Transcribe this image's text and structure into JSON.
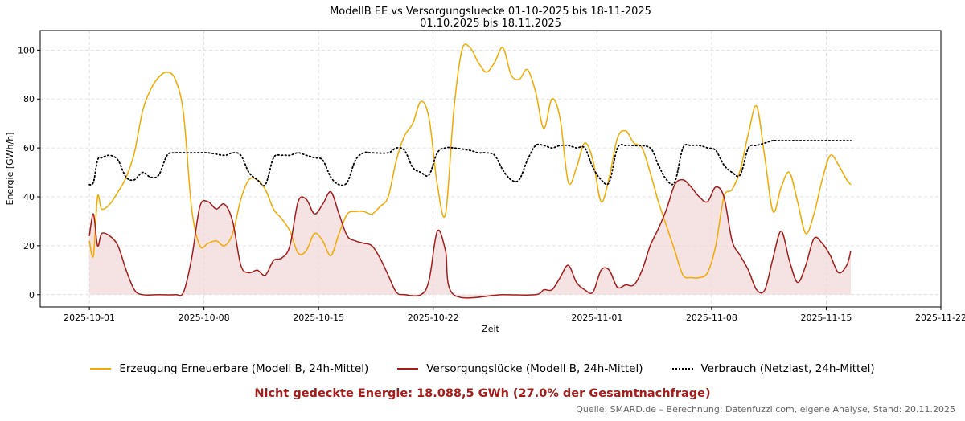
{
  "chart_data": {
    "type": "line",
    "title": "ModellB EE vs Versorgungsluecke 01-10-2025 bis 18-11-2025",
    "subtitle": "01.10.2025 bis 18.11.2025",
    "xlabel": "Zeit",
    "ylabel": "Energie [GWh/h]",
    "xlim": [
      "2025-09-28",
      "2025-11-22"
    ],
    "ylim": [
      -5,
      108
    ],
    "grid": true,
    "legend_position": "bottom-center",
    "x_ticks": [
      "2025-10-01",
      "2025-10-08",
      "2025-10-15",
      "2025-10-22",
      "2025-11-01",
      "2025-11-08",
      "2025-11-15",
      "2025-11-22"
    ],
    "y_ticks": [
      0,
      20,
      40,
      60,
      80,
      100
    ],
    "series": [
      {
        "name": "Erzeugung Erneuerbare (Modell B, 24h-Mittel)",
        "color": "#f2a900",
        "style": "solid",
        "points": [
          [
            "2025-10-01T00",
            22
          ],
          [
            "2025-10-01T06",
            16
          ],
          [
            "2025-10-01T12",
            40
          ],
          [
            "2025-10-01T18",
            35
          ],
          [
            "2025-10-02T06",
            37
          ],
          [
            "2025-10-02T18",
            42
          ],
          [
            "2025-10-03T06",
            48
          ],
          [
            "2025-10-03T18",
            58
          ],
          [
            "2025-10-04T06",
            75
          ],
          [
            "2025-10-04T18",
            84
          ],
          [
            "2025-10-05T06",
            89
          ],
          [
            "2025-10-05T18",
            91
          ],
          [
            "2025-10-06T06",
            88
          ],
          [
            "2025-10-06T18",
            74
          ],
          [
            "2025-10-07T06",
            35
          ],
          [
            "2025-10-07T18",
            20
          ],
          [
            "2025-10-08T06",
            21
          ],
          [
            "2025-10-08T18",
            22
          ],
          [
            "2025-10-09T06",
            20
          ],
          [
            "2025-10-09T18",
            25
          ],
          [
            "2025-10-10T06",
            39
          ],
          [
            "2025-10-10T18",
            47
          ],
          [
            "2025-10-11T06",
            47
          ],
          [
            "2025-10-11T18",
            43
          ],
          [
            "2025-10-12T06",
            35
          ],
          [
            "2025-10-12T18",
            31
          ],
          [
            "2025-10-13T06",
            26
          ],
          [
            "2025-10-13T18",
            17
          ],
          [
            "2025-10-14T06",
            18
          ],
          [
            "2025-10-14T18",
            25
          ],
          [
            "2025-10-15T06",
            22
          ],
          [
            "2025-10-15T18",
            16
          ],
          [
            "2025-10-16T06",
            25
          ],
          [
            "2025-10-16T18",
            33
          ],
          [
            "2025-10-17T06",
            34
          ],
          [
            "2025-10-17T18",
            34
          ],
          [
            "2025-10-18T06",
            33
          ],
          [
            "2025-10-18T18",
            36
          ],
          [
            "2025-10-19T06",
            40
          ],
          [
            "2025-10-19T18",
            55
          ],
          [
            "2025-10-20T06",
            65
          ],
          [
            "2025-10-20T18",
            70
          ],
          [
            "2025-10-21T06",
            79
          ],
          [
            "2025-10-21T18",
            72
          ],
          [
            "2025-10-22T06",
            45
          ],
          [
            "2025-10-22T18",
            33
          ],
          [
            "2025-10-23T06",
            75
          ],
          [
            "2025-10-23T18",
            100
          ],
          [
            "2025-10-24T06",
            101
          ],
          [
            "2025-10-24T18",
            95
          ],
          [
            "2025-10-25T06",
            91
          ],
          [
            "2025-10-25T18",
            95
          ],
          [
            "2025-10-26T06",
            101
          ],
          [
            "2025-10-26T18",
            90
          ],
          [
            "2025-10-27T06",
            88
          ],
          [
            "2025-10-27T18",
            92
          ],
          [
            "2025-10-28T06",
            83
          ],
          [
            "2025-10-28T18",
            68
          ],
          [
            "2025-10-29T06",
            80
          ],
          [
            "2025-10-29T18",
            72
          ],
          [
            "2025-10-30T06",
            46
          ],
          [
            "2025-10-30T18",
            52
          ],
          [
            "2025-10-31T06",
            62
          ],
          [
            "2025-10-31T18",
            55
          ],
          [
            "2025-11-01T06",
            38
          ],
          [
            "2025-11-01T18",
            48
          ],
          [
            "2025-11-02T06",
            64
          ],
          [
            "2025-11-02T18",
            67
          ],
          [
            "2025-11-03T06",
            62
          ],
          [
            "2025-11-03T18",
            60
          ],
          [
            "2025-11-04T06",
            50
          ],
          [
            "2025-11-04T18",
            38
          ],
          [
            "2025-11-05T06",
            28
          ],
          [
            "2025-11-05T18",
            18
          ],
          [
            "2025-11-06T06",
            8
          ],
          [
            "2025-11-06T18",
            7
          ],
          [
            "2025-11-07T06",
            7
          ],
          [
            "2025-11-07T18",
            9
          ],
          [
            "2025-11-08T06",
            20
          ],
          [
            "2025-11-08T18",
            40
          ],
          [
            "2025-11-09T06",
            43
          ],
          [
            "2025-11-09T18",
            51
          ],
          [
            "2025-11-10T06",
            66
          ],
          [
            "2025-11-10T18",
            77
          ],
          [
            "2025-11-11T06",
            56
          ],
          [
            "2025-11-11T18",
            34
          ],
          [
            "2025-11-12T06",
            44
          ],
          [
            "2025-11-12T18",
            50
          ],
          [
            "2025-11-13T06",
            38
          ],
          [
            "2025-11-13T18",
            25
          ],
          [
            "2025-11-14T06",
            33
          ],
          [
            "2025-11-14T18",
            47
          ],
          [
            "2025-11-15T06",
            57
          ],
          [
            "2025-11-15T18",
            53
          ],
          [
            "2025-11-16T06",
            47
          ],
          [
            "2025-11-16T12",
            45
          ]
        ]
      },
      {
        "name": "Versorgungslücke (Modell B, 24h-Mittel)",
        "color": "#a51c1c",
        "style": "solid",
        "filled": true,
        "points": [
          [
            "2025-10-01T00",
            24
          ],
          [
            "2025-10-01T06",
            33
          ],
          [
            "2025-10-01T12",
            20
          ],
          [
            "2025-10-01T18",
            25
          ],
          [
            "2025-10-02T06",
            24
          ],
          [
            "2025-10-02T18",
            20
          ],
          [
            "2025-10-03T06",
            10
          ],
          [
            "2025-10-03T18",
            2
          ],
          [
            "2025-10-04T06",
            0
          ],
          [
            "2025-10-05T06",
            0
          ],
          [
            "2025-10-06T06",
            0
          ],
          [
            "2025-10-06T18",
            1
          ],
          [
            "2025-10-07T06",
            15
          ],
          [
            "2025-10-07T18",
            36
          ],
          [
            "2025-10-08T06",
            38
          ],
          [
            "2025-10-08T18",
            35
          ],
          [
            "2025-10-09T06",
            37
          ],
          [
            "2025-10-09T18",
            30
          ],
          [
            "2025-10-10T06",
            12
          ],
          [
            "2025-10-10T18",
            9
          ],
          [
            "2025-10-11T06",
            10
          ],
          [
            "2025-10-11T18",
            8
          ],
          [
            "2025-10-12T06",
            14
          ],
          [
            "2025-10-12T18",
            15
          ],
          [
            "2025-10-13T06",
            20
          ],
          [
            "2025-10-13T18",
            38
          ],
          [
            "2025-10-14T06",
            39
          ],
          [
            "2025-10-14T18",
            33
          ],
          [
            "2025-10-15T06",
            37
          ],
          [
            "2025-10-15T18",
            42
          ],
          [
            "2025-10-16T06",
            33
          ],
          [
            "2025-10-16T18",
            24
          ],
          [
            "2025-10-17T06",
            22
          ],
          [
            "2025-10-17T18",
            21
          ],
          [
            "2025-10-18T06",
            20
          ],
          [
            "2025-10-18T18",
            15
          ],
          [
            "2025-10-19T06",
            8
          ],
          [
            "2025-10-19T18",
            1
          ],
          [
            "2025-10-20T06",
            0
          ],
          [
            "2025-10-21T06",
            0
          ],
          [
            "2025-10-21T18",
            6
          ],
          [
            "2025-10-22T06",
            26
          ],
          [
            "2025-10-22T18",
            18
          ],
          [
            "2025-10-23T06",
            0
          ],
          [
            "2025-10-26T06",
            0
          ],
          [
            "2025-10-28T06",
            0
          ],
          [
            "2025-10-28T18",
            2
          ],
          [
            "2025-10-29T06",
            2
          ],
          [
            "2025-10-29T18",
            7
          ],
          [
            "2025-10-30T06",
            12
          ],
          [
            "2025-10-30T18",
            5
          ],
          [
            "2025-10-31T06",
            2
          ],
          [
            "2025-10-31T18",
            1
          ],
          [
            "2025-11-01T06",
            10
          ],
          [
            "2025-11-01T18",
            10
          ],
          [
            "2025-11-02T06",
            3
          ],
          [
            "2025-11-02T18",
            4
          ],
          [
            "2025-11-03T06",
            4
          ],
          [
            "2025-11-03T18",
            10
          ],
          [
            "2025-11-04T06",
            20
          ],
          [
            "2025-11-04T18",
            27
          ],
          [
            "2025-11-05T06",
            35
          ],
          [
            "2025-11-05T18",
            45
          ],
          [
            "2025-11-06T06",
            47
          ],
          [
            "2025-11-06T18",
            44
          ],
          [
            "2025-11-07T06",
            40
          ],
          [
            "2025-11-07T18",
            38
          ],
          [
            "2025-11-08T06",
            44
          ],
          [
            "2025-11-08T18",
            40
          ],
          [
            "2025-11-09T06",
            22
          ],
          [
            "2025-11-09T18",
            16
          ],
          [
            "2025-11-10T06",
            10
          ],
          [
            "2025-11-10T18",
            2
          ],
          [
            "2025-11-11T06",
            2
          ],
          [
            "2025-11-11T18",
            15
          ],
          [
            "2025-11-12T06",
            26
          ],
          [
            "2025-11-12T18",
            14
          ],
          [
            "2025-11-13T06",
            5
          ],
          [
            "2025-11-13T18",
            12
          ],
          [
            "2025-11-14T06",
            23
          ],
          [
            "2025-11-14T18",
            21
          ],
          [
            "2025-11-15T06",
            16
          ],
          [
            "2025-11-15T18",
            9
          ],
          [
            "2025-11-16T06",
            12
          ],
          [
            "2025-11-16T12",
            18
          ]
        ]
      },
      {
        "name": "Verbrauch (Netzlast, 24h-Mittel)",
        "color": "#000000",
        "style": "dotted",
        "points": [
          [
            "2025-10-01T00",
            45
          ],
          [
            "2025-10-01T06",
            46
          ],
          [
            "2025-10-01T12",
            55
          ],
          [
            "2025-10-01T18",
            56
          ],
          [
            "2025-10-02T06",
            57
          ],
          [
            "2025-10-02T18",
            55
          ],
          [
            "2025-10-03T06",
            48
          ],
          [
            "2025-10-03T18",
            47
          ],
          [
            "2025-10-04T06",
            50
          ],
          [
            "2025-10-04T18",
            48
          ],
          [
            "2025-10-05T06",
            49
          ],
          [
            "2025-10-05T18",
            57
          ],
          [
            "2025-10-06T06",
            58
          ],
          [
            "2025-10-07T06",
            58
          ],
          [
            "2025-10-08T06",
            58
          ],
          [
            "2025-10-09T06",
            57
          ],
          [
            "2025-10-09T18",
            58
          ],
          [
            "2025-10-10T06",
            57
          ],
          [
            "2025-10-10T18",
            50
          ],
          [
            "2025-10-11T06",
            47
          ],
          [
            "2025-10-11T18",
            45
          ],
          [
            "2025-10-12T06",
            56
          ],
          [
            "2025-10-12T18",
            57
          ],
          [
            "2025-10-13T06",
            57
          ],
          [
            "2025-10-13T18",
            58
          ],
          [
            "2025-10-14T06",
            57
          ],
          [
            "2025-10-14T18",
            56
          ],
          [
            "2025-10-15T06",
            55
          ],
          [
            "2025-10-15T18",
            48
          ],
          [
            "2025-10-16T06",
            45
          ],
          [
            "2025-10-16T18",
            46
          ],
          [
            "2025-10-17T06",
            55
          ],
          [
            "2025-10-17T18",
            58
          ],
          [
            "2025-10-18T06",
            58
          ],
          [
            "2025-10-19T06",
            58
          ],
          [
            "2025-10-19T18",
            60
          ],
          [
            "2025-10-20T06",
            59
          ],
          [
            "2025-10-20T18",
            52
          ],
          [
            "2025-10-21T06",
            50
          ],
          [
            "2025-10-21T18",
            49
          ],
          [
            "2025-10-22T06",
            58
          ],
          [
            "2025-10-22T18",
            60
          ],
          [
            "2025-10-23T06",
            60
          ],
          [
            "2025-10-24T06",
            59
          ],
          [
            "2025-10-24T18",
            58
          ],
          [
            "2025-10-25T06",
            58
          ],
          [
            "2025-10-25T18",
            57
          ],
          [
            "2025-10-26T06",
            51
          ],
          [
            "2025-10-26T18",
            47
          ],
          [
            "2025-10-27T06",
            47
          ],
          [
            "2025-10-27T18",
            55
          ],
          [
            "2025-10-28T06",
            61
          ],
          [
            "2025-10-28T18",
            61
          ],
          [
            "2025-10-29T06",
            60
          ],
          [
            "2025-10-29T18",
            61
          ],
          [
            "2025-10-30T06",
            61
          ],
          [
            "2025-10-30T18",
            60
          ],
          [
            "2025-10-31T06",
            60
          ],
          [
            "2025-10-31T18",
            52
          ],
          [
            "2025-11-01T06",
            47
          ],
          [
            "2025-11-01T18",
            46
          ],
          [
            "2025-11-02T06",
            60
          ],
          [
            "2025-11-02T18",
            61
          ],
          [
            "2025-11-03T06",
            61
          ],
          [
            "2025-11-04T06",
            60
          ],
          [
            "2025-11-04T18",
            53
          ],
          [
            "2025-11-05T06",
            47
          ],
          [
            "2025-11-05T18",
            46
          ],
          [
            "2025-11-06T06",
            60
          ],
          [
            "2025-11-06T18",
            61
          ],
          [
            "2025-11-07T06",
            61
          ],
          [
            "2025-11-07T18",
            60
          ],
          [
            "2025-11-08T06",
            59
          ],
          [
            "2025-11-08T18",
            53
          ],
          [
            "2025-11-09T06",
            50
          ],
          [
            "2025-11-09T18",
            49
          ],
          [
            "2025-11-10T06",
            60
          ],
          [
            "2025-11-10T18",
            61
          ],
          [
            "2025-11-11T06",
            62
          ],
          [
            "2025-11-11T18",
            63
          ],
          [
            "2025-11-12T06",
            63
          ],
          [
            "2025-11-16T12",
            63
          ]
        ]
      }
    ],
    "area_fill_color": "#f2d9d9"
  },
  "legend": {
    "items": [
      {
        "label": "Erzeugung Erneuerbare (Modell B, 24h-Mittel)",
        "color": "#f2a900",
        "style": "solid"
      },
      {
        "label": "Versorgungslücke (Modell B, 24h-Mittel)",
        "color": "#a51c1c",
        "style": "solid"
      },
      {
        "label": "Verbrauch (Netzlast, 24h-Mittel)",
        "color": "#000000",
        "style": "dotted"
      }
    ]
  },
  "summary": {
    "text": "Nicht gedeckte Energie: 18.088,5 GWh (27.0% der Gesamtnachfrage)",
    "color": "#a51c1c"
  },
  "source": {
    "text": "Quelle: SMARD.de – Berechnung: Datenfuzzi.com, eigene Analyse, Stand: 20.11.2025"
  }
}
